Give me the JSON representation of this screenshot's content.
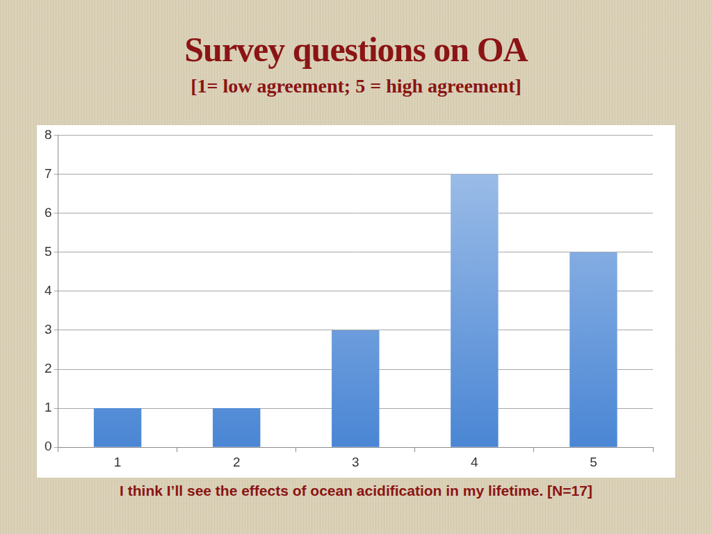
{
  "chart_data": {
    "type": "bar",
    "title": "Survey questions on OA",
    "subtitle": "[1= low agreement; 5 = high agreement]",
    "caption": "I think I’ll see the effects of ocean acidification in my lifetime. [N=17]",
    "categories": [
      "1",
      "2",
      "3",
      "4",
      "5"
    ],
    "values": [
      1,
      1,
      3,
      7,
      5
    ],
    "color": "#4a86d4",
    "ylim": [
      0,
      8
    ],
    "yticks": [
      0,
      1,
      2,
      3,
      4,
      5,
      6,
      7,
      8
    ],
    "grid": true
  }
}
